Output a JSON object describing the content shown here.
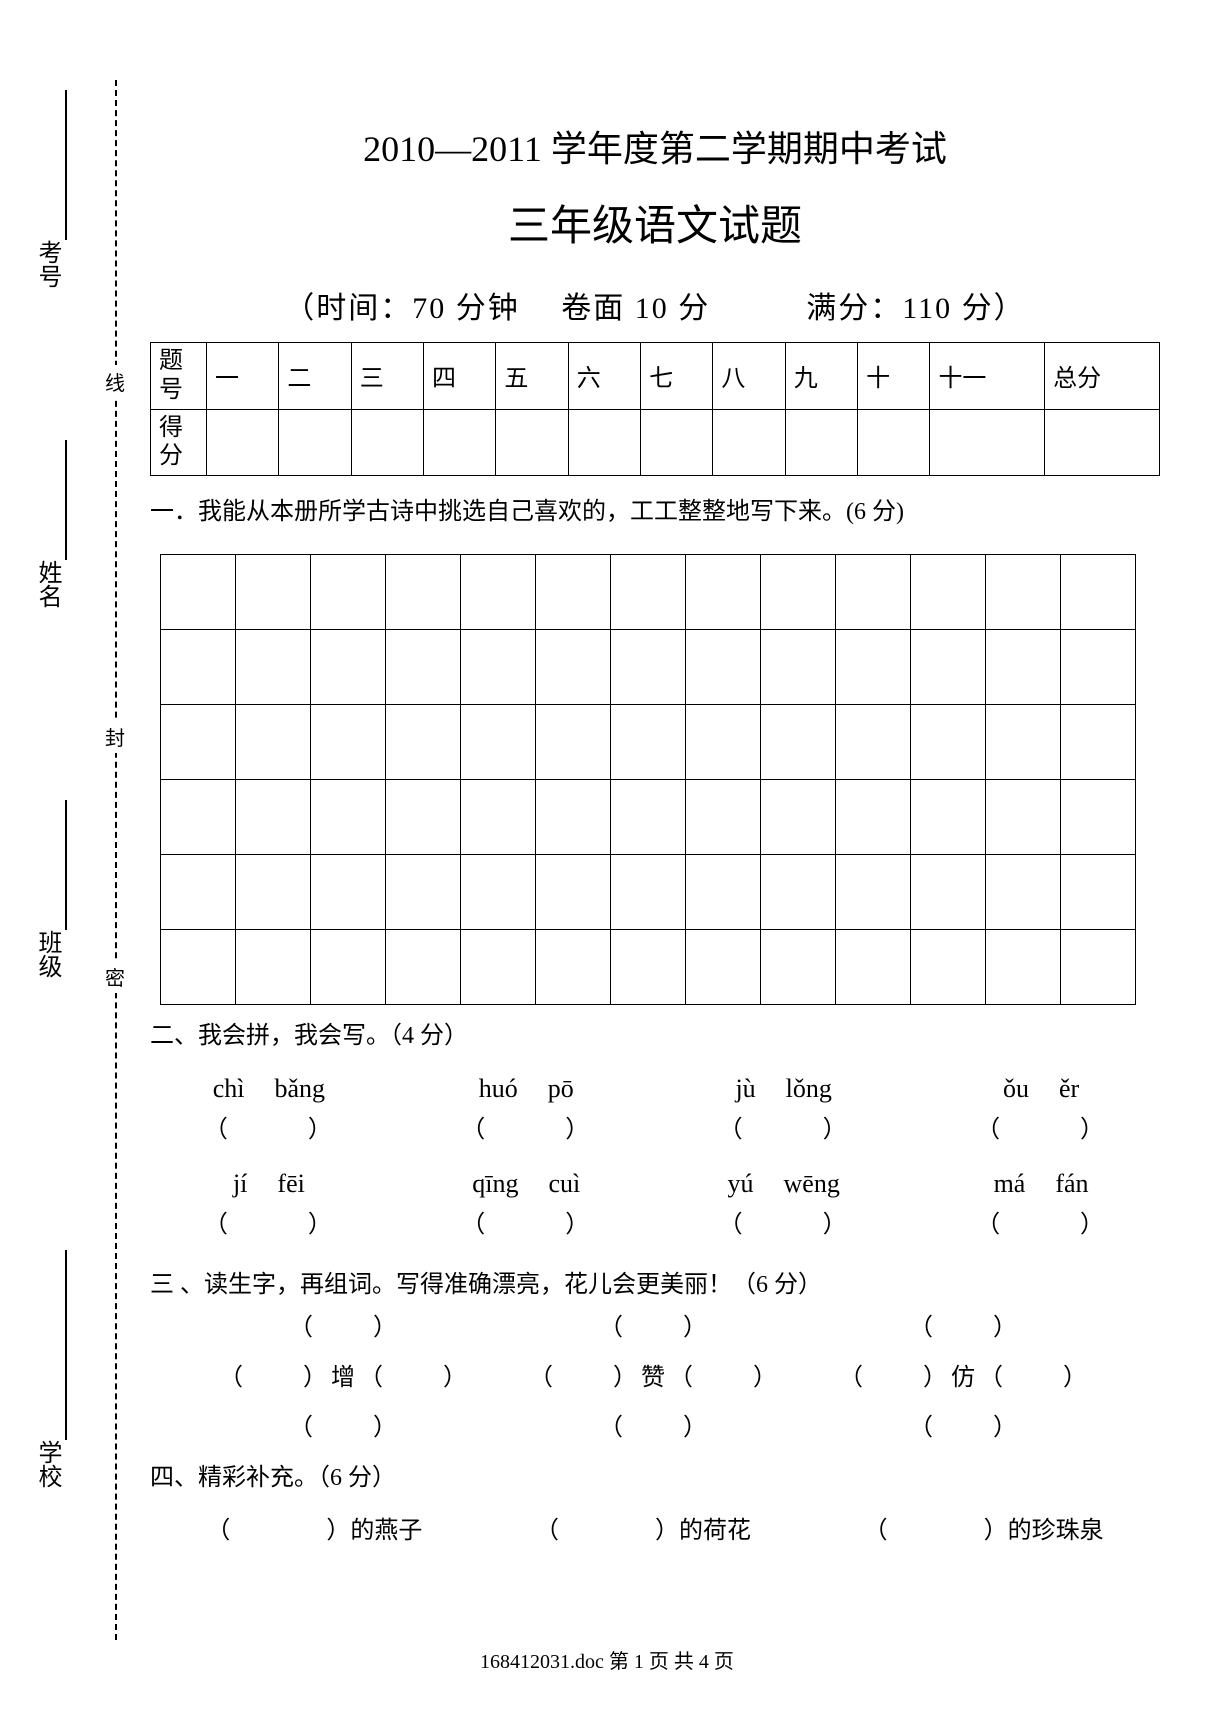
{
  "margin": {
    "kao": "考号",
    "xing": "姓名",
    "ban": "班级",
    "xue": "学校",
    "xian": "线",
    "feng": "封",
    "mi": "密"
  },
  "header": {
    "title1": "2010—2011 学年度第二学期期中考试",
    "title2": "三年级语文试题",
    "info": "（时间：70 分钟　 卷面 10 分　　　满分：110 分）"
  },
  "score_table": {
    "row1_label": "题号",
    "row2_label": "得分",
    "cols": [
      "一",
      "二",
      "三",
      "四",
      "五",
      "六",
      "七",
      "八",
      "九",
      "十",
      "十一",
      "总分"
    ]
  },
  "section1": {
    "text": "一．我能从本册所学古诗中挑选自己喜欢的，工工整整地写下来。(6 分)",
    "grid": {
      "rows": 6,
      "cols": 13
    }
  },
  "section2": {
    "title": "二、我会拼，我会写。（4 分）",
    "row1": {
      "pinyin": [
        [
          "chì",
          "bǎng"
        ],
        [
          "huó",
          "pō"
        ],
        [
          "jù",
          "lǒng"
        ],
        [
          "ǒu",
          "ěr"
        ]
      ]
    },
    "row2": {
      "pinyin": [
        [
          "jí",
          "fēi"
        ],
        [
          "qīng",
          "cuì"
        ],
        [
          "yú",
          "wēng"
        ],
        [
          "má",
          "fán"
        ]
      ]
    },
    "paren": "（　　　）"
  },
  "section3": {
    "title": "三 、读生字，再组词。写得准确漂亮，花儿会更美丽！（6 分）",
    "rows": [
      [
        "（　　）",
        "（　　）",
        "（　　）"
      ],
      [
        "（　　）增（　　）",
        "（　　）赞（　　）",
        "（　　）仿（　　）"
      ],
      [
        "（　　）",
        "（　　）",
        "（　　）"
      ]
    ]
  },
  "section4": {
    "title": "四、精彩补充。（6 分）",
    "items": [
      "（　　　　）的燕子",
      "（　　　　）的荷花",
      "（　　　　）的珍珠泉"
    ]
  },
  "footer": "168412031.doc 第 1 页 共 4 页"
}
